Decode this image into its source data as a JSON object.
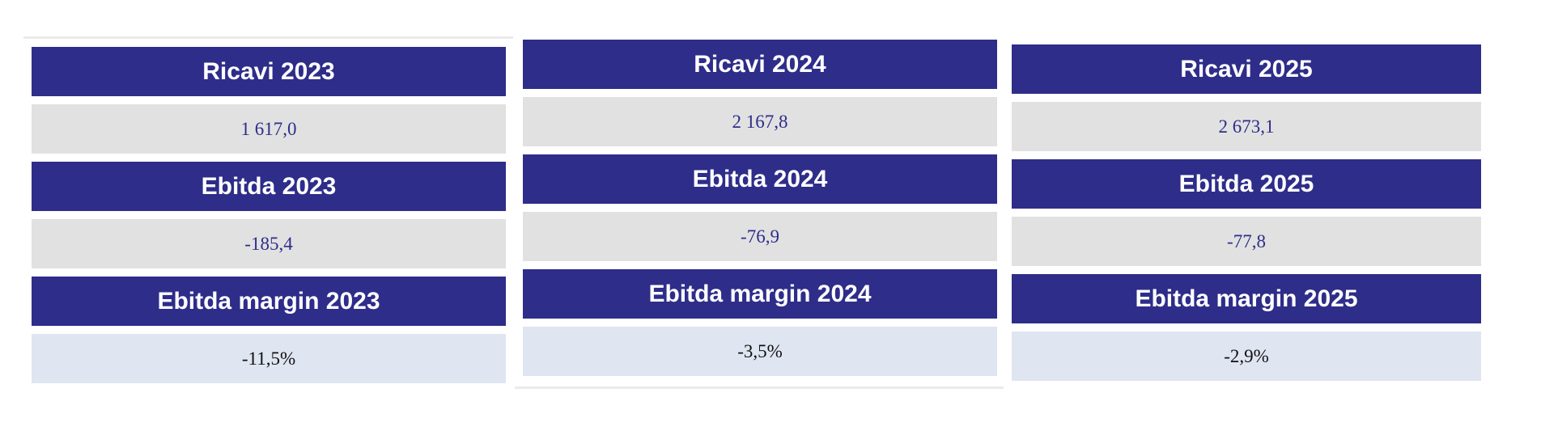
{
  "tables": [
    {
      "rows": [
        {
          "label": "Ricavi 2023",
          "value": "1 617,0"
        },
        {
          "label": "Ebitda 2023",
          "value": "-185,4"
        },
        {
          "label": "Ebitda margin 2023",
          "value": "-11,5%"
        }
      ]
    },
    {
      "rows": [
        {
          "label": "Ricavi 2024",
          "value": "2 167,8"
        },
        {
          "label": "Ebitda 2024",
          "value": "-76,9"
        },
        {
          "label": "Ebitda margin 2024",
          "value": "-3,5%"
        }
      ]
    },
    {
      "rows": [
        {
          "label": "Ricavi 2025",
          "value": "2 673,1"
        },
        {
          "label": "Ebitda 2025",
          "value": "-77,8"
        },
        {
          "label": "Ebitda margin 2025",
          "value": "-2,9%"
        }
      ]
    }
  ]
}
